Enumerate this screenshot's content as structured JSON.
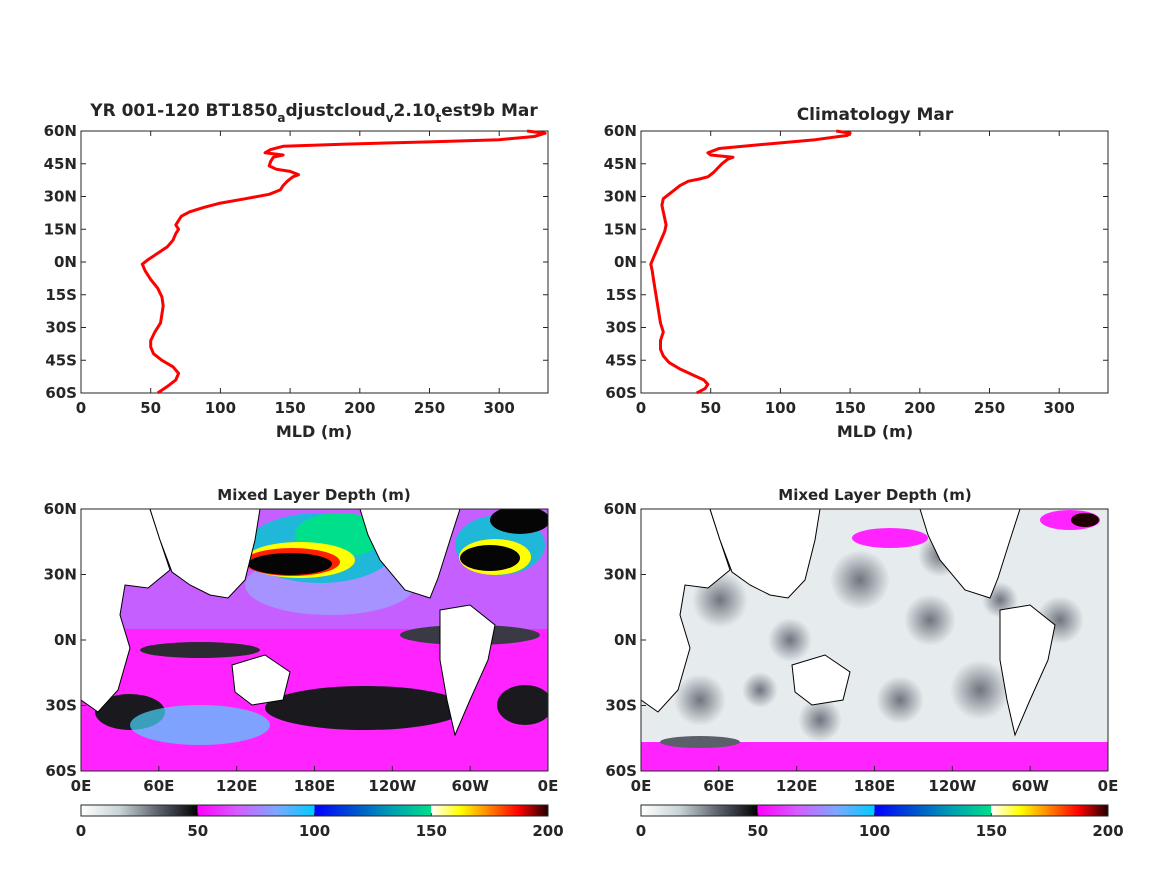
{
  "colors": {
    "line": "#ff0000",
    "axis": "#262626",
    "colorbar_segments": [
      {
        "from": 0,
        "to": 50,
        "stops": [
          "#ffffff",
          "#c9d3d6",
          "#5a5f6a",
          "#000000"
        ]
      },
      {
        "from": 50,
        "to": 100,
        "stops": [
          "#ff00ff",
          "#d65cff",
          "#7fa6ff",
          "#00ccff"
        ]
      },
      {
        "from": 100,
        "to": 150,
        "stops": [
          "#0000ff",
          "#0050d0",
          "#00a0b0",
          "#00e08a"
        ]
      },
      {
        "from": 150,
        "to": 200,
        "stops": [
          "#ffffff",
          "#ffff00",
          "#ff8000",
          "#ff0000",
          "#200000"
        ]
      }
    ]
  },
  "chart_data": [
    {
      "type": "line",
      "title_main": "YR 001-120 BT1850",
      "title_sub1": "a",
      "title_mid1": "djustcloud",
      "title_sub2": "v",
      "title_mid2": "2.10",
      "title_sub3": "t",
      "title_end": "est9b Mar",
      "xlabel": "MLD (m)",
      "xlim": [
        0,
        335
      ],
      "ylim": [
        -60,
        60
      ],
      "xticks": [
        0,
        50,
        100,
        150,
        200,
        250,
        300
      ],
      "xtick_labels": [
        "0",
        "50",
        "100",
        "150",
        "200",
        "250",
        "300"
      ],
      "yticks": [
        60,
        45,
        30,
        15,
        0,
        -15,
        -30,
        -45,
        -60
      ],
      "ytick_labels": [
        "60N",
        "45N",
        "30N",
        "15N",
        "0N",
        "15S",
        "30S",
        "45S",
        "60S"
      ],
      "points": [
        [
          55,
          -60
        ],
        [
          62,
          -57
        ],
        [
          68,
          -54
        ],
        [
          70,
          -51
        ],
        [
          66,
          -48
        ],
        [
          58,
          -45
        ],
        [
          52,
          -42
        ],
        [
          50,
          -39
        ],
        [
          50,
          -36
        ],
        [
          53,
          -32
        ],
        [
          57,
          -28
        ],
        [
          58,
          -24
        ],
        [
          59,
          -20
        ],
        [
          58,
          -16
        ],
        [
          55,
          -12
        ],
        [
          50,
          -8
        ],
        [
          46,
          -4
        ],
        [
          44,
          -1
        ],
        [
          48,
          1
        ],
        [
          55,
          4
        ],
        [
          62,
          7
        ],
        [
          66,
          10
        ],
        [
          68,
          13
        ],
        [
          70,
          15
        ],
        [
          68,
          17
        ],
        [
          70,
          19
        ],
        [
          72,
          21
        ],
        [
          78,
          23
        ],
        [
          88,
          25
        ],
        [
          100,
          27
        ],
        [
          118,
          29
        ],
        [
          135,
          31
        ],
        [
          143,
          33
        ],
        [
          145,
          35
        ],
        [
          148,
          37
        ],
        [
          152,
          39
        ],
        [
          156,
          40
        ],
        [
          150,
          41.5
        ],
        [
          140,
          42.5
        ],
        [
          135,
          44
        ],
        [
          136,
          46
        ],
        [
          138,
          48
        ],
        [
          145,
          49
        ],
        [
          132,
          50
        ],
        [
          136,
          51.5
        ],
        [
          145,
          53
        ],
        [
          190,
          54
        ],
        [
          250,
          55
        ],
        [
          300,
          56
        ],
        [
          325,
          57.5
        ],
        [
          333,
          59
        ],
        [
          320,
          60
        ]
      ]
    },
    {
      "type": "line",
      "title": "Climatology Mar",
      "xlabel": "MLD (m)",
      "xlim": [
        0,
        335
      ],
      "ylim": [
        -60,
        60
      ],
      "xticks": [
        0,
        50,
        100,
        150,
        200,
        250,
        300
      ],
      "xtick_labels": [
        "0",
        "50",
        "100",
        "150",
        "200",
        "250",
        "300"
      ],
      "yticks": [
        60,
        45,
        30,
        15,
        0,
        -15,
        -30,
        -45,
        -60
      ],
      "ytick_labels": [
        "60N",
        "45N",
        "30N",
        "15N",
        "0N",
        "15S",
        "30S",
        "45S",
        "60S"
      ],
      "points": [
        [
          40,
          -60
        ],
        [
          46,
          -58
        ],
        [
          48,
          -56
        ],
        [
          45,
          -54
        ],
        [
          38,
          -52
        ],
        [
          28,
          -49
        ],
        [
          20,
          -46
        ],
        [
          16,
          -43
        ],
        [
          14,
          -40
        ],
        [
          14,
          -36
        ],
        [
          16,
          -32
        ],
        [
          14,
          -28
        ],
        [
          13,
          -24
        ],
        [
          12,
          -20
        ],
        [
          11,
          -16
        ],
        [
          10,
          -12
        ],
        [
          9,
          -8
        ],
        [
          8,
          -4
        ],
        [
          7,
          -1
        ],
        [
          9,
          2
        ],
        [
          11,
          5
        ],
        [
          13,
          8
        ],
        [
          15,
          11
        ],
        [
          17,
          14
        ],
        [
          18,
          17
        ],
        [
          17,
          20
        ],
        [
          16,
          23
        ],
        [
          15,
          26
        ],
        [
          16,
          29
        ],
        [
          20,
          31
        ],
        [
          24,
          33
        ],
        [
          28,
          35
        ],
        [
          34,
          37
        ],
        [
          42,
          38
        ],
        [
          48,
          39
        ],
        [
          52,
          41
        ],
        [
          55,
          43
        ],
        [
          58,
          45
        ],
        [
          62,
          47
        ],
        [
          66,
          48
        ],
        [
          50,
          49
        ],
        [
          48,
          50
        ],
        [
          56,
          52
        ],
        [
          90,
          54
        ],
        [
          125,
          56
        ],
        [
          148,
          58
        ],
        [
          150,
          59
        ],
        [
          140,
          60
        ]
      ]
    },
    {
      "type": "heatmap",
      "title": "Mixed Layer Depth (m)",
      "xticks": [
        "0E",
        "60E",
        "120E",
        "180E",
        "120W",
        "60W",
        "0E"
      ],
      "yticks": [
        "60N",
        "30N",
        "0N",
        "30S",
        "60S"
      ],
      "ylim": [
        -60,
        60
      ],
      "colorbar_ticks": [
        "0",
        "50",
        "100",
        "150",
        "200"
      ],
      "clim": [
        0,
        200
      ]
    },
    {
      "type": "heatmap",
      "title": "Mixed Layer Depth (m)",
      "xticks": [
        "0E",
        "60E",
        "120E",
        "180E",
        "120W",
        "60W",
        "0E"
      ],
      "yticks": [
        "60N",
        "30N",
        "0N",
        "30S",
        "60S"
      ],
      "ylim": [
        -60,
        60
      ],
      "colorbar_ticks": [
        "0",
        "50",
        "100",
        "150",
        "200"
      ],
      "clim": [
        0,
        200
      ]
    }
  ]
}
